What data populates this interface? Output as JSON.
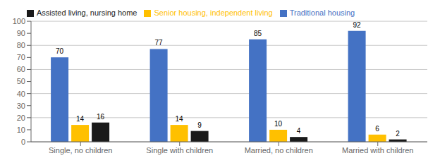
{
  "chart_data": {
    "type": "bar",
    "categories": [
      "Single, no children",
      "Single with children",
      "Married, no children",
      "Married with children"
    ],
    "series": [
      {
        "name": "Traditional housing",
        "color": "#4472C4",
        "values": [
          70,
          77,
          85,
          92
        ]
      },
      {
        "name": "Senior housing, independent living",
        "color": "#FFC000",
        "values": [
          14,
          14,
          10,
          6
        ]
      },
      {
        "name": "Assisted living, nursing home",
        "color": "#1a1a1a",
        "values": [
          16,
          9,
          4,
          2
        ]
      }
    ],
    "ylim": [
      0,
      100
    ],
    "yticks": [
      0,
      10,
      20,
      30,
      40,
      50,
      60,
      70,
      80,
      90,
      100
    ],
    "grid": true,
    "legend": "upper left",
    "data_labels": true
  }
}
